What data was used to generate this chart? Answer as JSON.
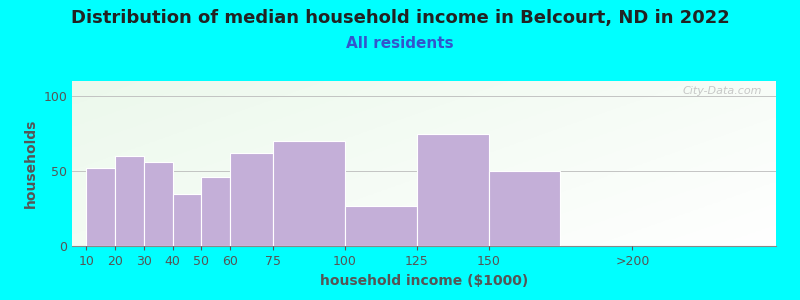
{
  "title": "Distribution of median household income in Belcourt, ND in 2022",
  "subtitle": "All residents",
  "xlabel": "household income ($1000)",
  "ylabel": "households",
  "background_color": "#00FFFF",
  "bar_color": "#c4afd8",
  "watermark": "City-Data.com",
  "title_fontsize": 13,
  "subtitle_fontsize": 11,
  "axis_label_fontsize": 10,
  "tick_fontsize": 9,
  "bar_positions": [
    10,
    20,
    30,
    40,
    50,
    75,
    87.5,
    112.5,
    137.5,
    162.5,
    225
  ],
  "bar_heights": [
    52,
    60,
    56,
    35,
    46,
    62,
    70,
    27,
    75,
    50,
    0
  ],
  "bar_widths": [
    10,
    10,
    10,
    10,
    10,
    15,
    25,
    25,
    25,
    25,
    0
  ],
  "tick_positions": [
    10,
    20,
    30,
    40,
    50,
    60,
    75,
    100,
    125,
    150,
    200
  ],
  "tick_labels": [
    "10",
    "20",
    "30",
    "40",
    "50",
    "60",
    "75",
    "100",
    "125",
    "150",
    ">200"
  ],
  "ylim": [
    0,
    110
  ],
  "yticks": [
    0,
    50,
    100
  ],
  "xlim": [
    5,
    250
  ]
}
